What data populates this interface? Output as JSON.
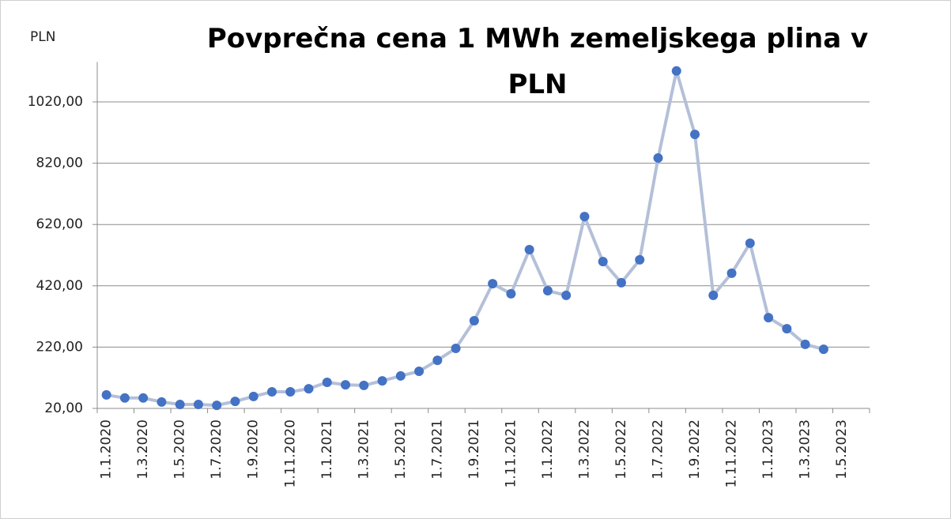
{
  "chart_data": {
    "type": "line",
    "title": "Povprečna cena 1 MWh zemeljskega plina v PLN",
    "y_label": "PLN",
    "categories": [
      "1.1.2020",
      null,
      "1.3.2020",
      null,
      "1.5.2020",
      null,
      "1.7.2020",
      null,
      "1.9.2020",
      null,
      "1.11.2020",
      null,
      "1.1.2021",
      null,
      "1.3.2021",
      null,
      "1.5.2021",
      null,
      "1.7.2021",
      null,
      "1.9.2021",
      null,
      "1.11.2021",
      null,
      "1.1.2022",
      null,
      "1.3.2022",
      null,
      "1.5.2022",
      null,
      "1.7.2022",
      null,
      "1.9.2022",
      null,
      "1.11.2022",
      null,
      "1.1.2023",
      null,
      "1.3.2023",
      null,
      "1.5.2023",
      null
    ],
    "series": [
      {
        "name": "PLN",
        "color": "#b4c0d8",
        "marker_color": "#4472c4",
        "values": [
          64,
          54,
          54,
          41,
          33,
          33,
          30,
          43,
          59,
          74,
          74,
          84,
          105,
          97,
          95,
          110,
          126,
          141,
          177,
          216,
          306,
          427,
          394,
          538,
          404,
          389,
          646,
          499,
          430,
          505,
          837,
          1121,
          914,
          389,
          461,
          559,
          316,
          280,
          229,
          213,
          null,
          null
        ]
      }
    ],
    "ylim": [
      20,
      1150
    ],
    "yticks": [
      {
        "value": 20,
        "label": "20,00"
      },
      {
        "value": 220,
        "label": "220,00"
      },
      {
        "value": 420,
        "label": "420,00"
      },
      {
        "value": 620,
        "label": "620,00"
      },
      {
        "value": 820,
        "label": "820,00"
      },
      {
        "value": 1020,
        "label": "1020,00"
      }
    ],
    "grid": true
  }
}
